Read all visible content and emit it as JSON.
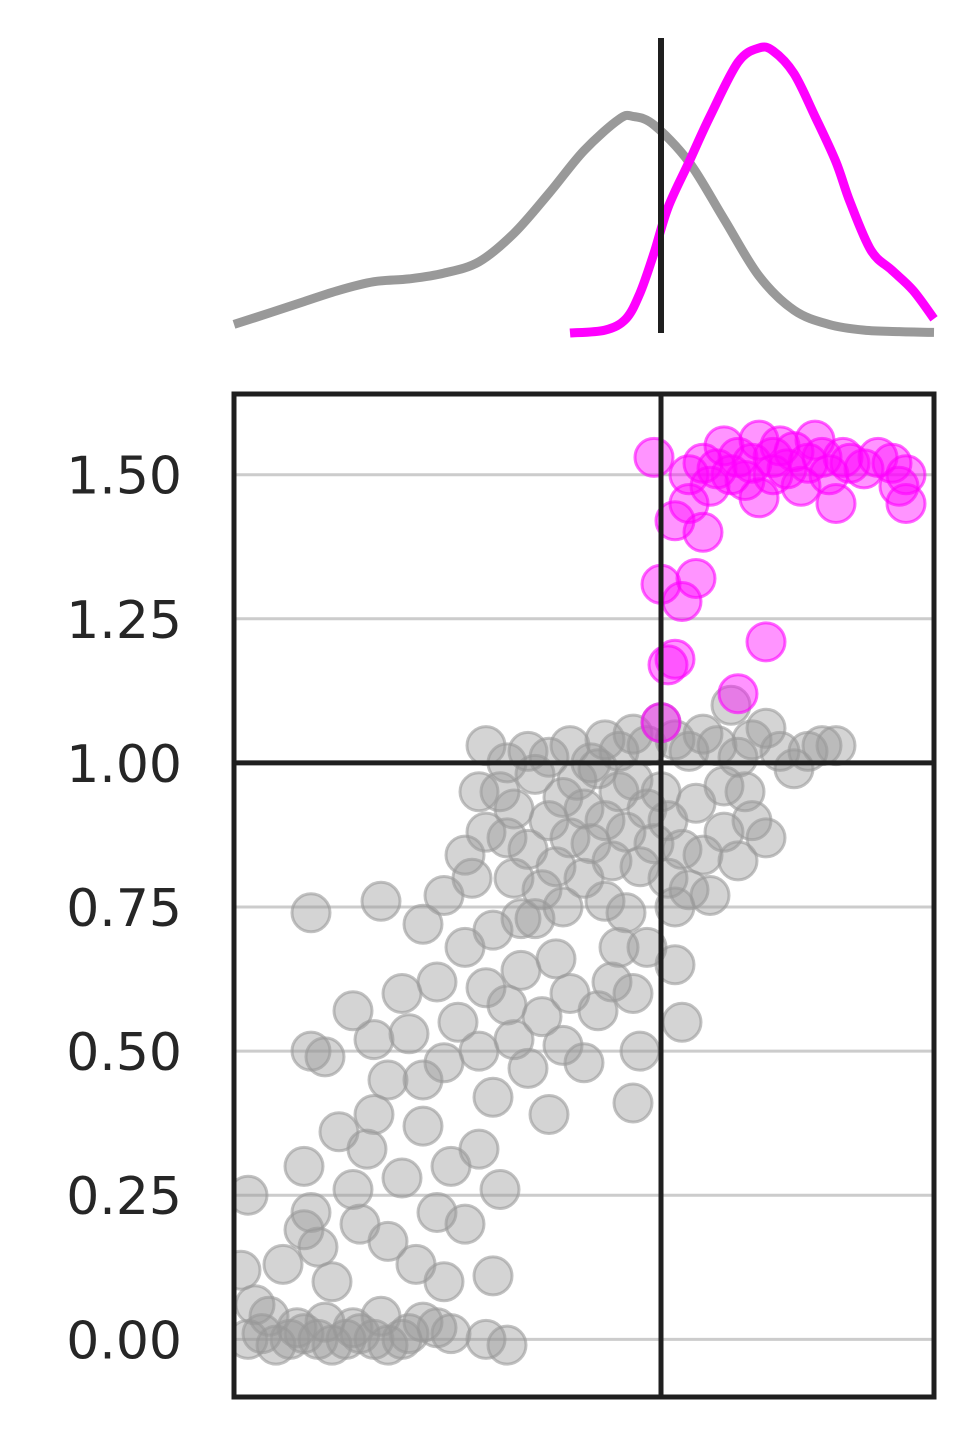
{
  "chart_data": [
    {
      "type": "line",
      "panel": "marginal-density",
      "title": "",
      "xlabel": "",
      "ylabel": "",
      "xlim": [
        0,
        1
      ],
      "ylim": [
        0,
        1
      ],
      "grid": false,
      "threshold_x": 0.61,
      "series": [
        {
          "color": "#999999",
          "x": [
            0.0,
            0.05,
            0.1,
            0.15,
            0.2,
            0.25,
            0.3,
            0.35,
            0.4,
            0.45,
            0.5,
            0.55,
            0.57,
            0.6,
            0.65,
            0.7,
            0.75,
            0.8,
            0.85,
            0.9,
            0.95,
            1.0
          ],
          "y": [
            0.03,
            0.07,
            0.11,
            0.15,
            0.18,
            0.19,
            0.21,
            0.25,
            0.35,
            0.49,
            0.64,
            0.75,
            0.76,
            0.73,
            0.6,
            0.4,
            0.2,
            0.08,
            0.03,
            0.01,
            0.005,
            0.002
          ]
        },
        {
          "color": "#ff00ff",
          "x": [
            0.48,
            0.53,
            0.56,
            0.58,
            0.6,
            0.62,
            0.65,
            0.68,
            0.72,
            0.75,
            0.77,
            0.8,
            0.83,
            0.86,
            0.88,
            0.91,
            0.94,
            0.97,
            1.0
          ],
          "y": [
            0.0,
            0.01,
            0.05,
            0.14,
            0.28,
            0.44,
            0.6,
            0.76,
            0.95,
            1.0,
            0.99,
            0.91,
            0.76,
            0.6,
            0.46,
            0.29,
            0.22,
            0.15,
            0.05
          ]
        }
      ]
    },
    {
      "type": "scatter",
      "panel": "main",
      "title": "",
      "xlabel": "",
      "ylabel": "",
      "xlim": [
        0,
        1
      ],
      "ylim": [
        -0.1,
        1.64
      ],
      "y_ticks": [
        "0.00",
        "0.25",
        "0.50",
        "0.75",
        "1.00",
        "1.25",
        "1.50"
      ],
      "grid": "horizontal",
      "threshold_x": 0.61,
      "threshold_y": 1.0,
      "series": [
        {
          "color": "#999999",
          "points": [
            [
              0.02,
              0.0
            ],
            [
              0.04,
              0.01
            ],
            [
              0.06,
              -0.01
            ],
            [
              0.08,
              0.0
            ],
            [
              0.1,
              0.01
            ],
            [
              0.12,
              0.0
            ],
            [
              0.14,
              -0.01
            ],
            [
              0.16,
              0.0
            ],
            [
              0.18,
              0.01
            ],
            [
              0.2,
              0.0
            ],
            [
              0.22,
              -0.01
            ],
            [
              0.24,
              0.0
            ],
            [
              0.03,
              0.06
            ],
            [
              0.05,
              0.04
            ],
            [
              0.09,
              0.02
            ],
            [
              0.13,
              0.03
            ],
            [
              0.17,
              0.02
            ],
            [
              0.21,
              0.04
            ],
            [
              0.25,
              0.01
            ],
            [
              0.27,
              0.03
            ],
            [
              0.29,
              0.02
            ],
            [
              0.31,
              0.01
            ],
            [
              0.36,
              0.0
            ],
            [
              0.39,
              -0.01
            ],
            [
              0.01,
              0.12
            ],
            [
              0.02,
              0.25
            ],
            [
              0.07,
              0.13
            ],
            [
              0.1,
              0.19
            ],
            [
              0.12,
              0.16
            ],
            [
              0.1,
              0.3
            ],
            [
              0.11,
              0.22
            ],
            [
              0.15,
              0.36
            ],
            [
              0.14,
              0.1
            ],
            [
              0.17,
              0.26
            ],
            [
              0.18,
              0.2
            ],
            [
              0.19,
              0.33
            ],
            [
              0.2,
              0.39
            ],
            [
              0.22,
              0.17
            ],
            [
              0.24,
              0.28
            ],
            [
              0.26,
              0.13
            ],
            [
              0.27,
              0.37
            ],
            [
              0.29,
              0.22
            ],
            [
              0.3,
              0.1
            ],
            [
              0.31,
              0.3
            ],
            [
              0.33,
              0.2
            ],
            [
              0.35,
              0.33
            ],
            [
              0.37,
              0.11
            ],
            [
              0.38,
              0.26
            ],
            [
              0.11,
              0.5
            ],
            [
              0.13,
              0.49
            ],
            [
              0.17,
              0.57
            ],
            [
              0.2,
              0.52
            ],
            [
              0.22,
              0.45
            ],
            [
              0.24,
              0.6
            ],
            [
              0.25,
              0.53
            ],
            [
              0.27,
              0.45
            ],
            [
              0.29,
              0.62
            ],
            [
              0.3,
              0.48
            ],
            [
              0.32,
              0.55
            ],
            [
              0.33,
              0.68
            ],
            [
              0.35,
              0.5
            ],
            [
              0.36,
              0.61
            ],
            [
              0.37,
              0.42
            ],
            [
              0.39,
              0.58
            ],
            [
              0.4,
              0.52
            ],
            [
              0.41,
              0.64
            ],
            [
              0.42,
              0.47
            ],
            [
              0.43,
              0.73
            ],
            [
              0.44,
              0.56
            ],
            [
              0.45,
              0.39
            ],
            [
              0.46,
              0.66
            ],
            [
              0.47,
              0.51
            ],
            [
              0.48,
              0.6
            ],
            [
              0.5,
              0.48
            ],
            [
              0.52,
              0.57
            ],
            [
              0.54,
              0.62
            ],
            [
              0.55,
              0.68
            ],
            [
              0.57,
              0.6
            ],
            [
              0.58,
              0.5
            ],
            [
              0.57,
              0.41
            ],
            [
              0.11,
              0.74
            ],
            [
              0.21,
              0.76
            ],
            [
              0.27,
              0.72
            ],
            [
              0.3,
              0.77
            ],
            [
              0.33,
              0.84
            ],
            [
              0.34,
              0.8
            ],
            [
              0.35,
              0.95
            ],
            [
              0.36,
              0.88
            ],
            [
              0.37,
              0.71
            ],
            [
              0.39,
              0.87
            ],
            [
              0.38,
              0.95
            ],
            [
              0.4,
              0.8
            ],
            [
              0.4,
              0.92
            ],
            [
              0.41,
              0.73
            ],
            [
              0.42,
              0.85
            ],
            [
              0.43,
              0.98
            ],
            [
              0.44,
              0.78
            ],
            [
              0.45,
              0.9
            ],
            [
              0.46,
              0.82
            ],
            [
              0.47,
              0.94
            ],
            [
              0.47,
              0.75
            ],
            [
              0.48,
              0.87
            ],
            [
              0.49,
              0.97
            ],
            [
              0.5,
              0.8
            ],
            [
              0.5,
              0.92
            ],
            [
              0.51,
              0.86
            ],
            [
              0.52,
              0.99
            ],
            [
              0.53,
              0.76
            ],
            [
              0.53,
              0.9
            ],
            [
              0.54,
              0.83
            ],
            [
              0.55,
              0.95
            ],
            [
              0.56,
              0.88
            ],
            [
              0.56,
              0.74
            ],
            [
              0.57,
              0.97
            ],
            [
              0.58,
              0.82
            ],
            [
              0.59,
              0.92
            ],
            [
              0.59,
              0.68
            ],
            [
              0.6,
              0.86
            ],
            [
              0.61,
              0.95
            ],
            [
              0.62,
              0.8
            ],
            [
              0.62,
              0.9
            ],
            [
              0.63,
              0.75
            ],
            [
              0.63,
              0.65
            ],
            [
              0.64,
              0.55
            ],
            [
              0.64,
              0.85
            ],
            [
              0.65,
              0.78
            ],
            [
              0.66,
              0.93
            ],
            [
              0.67,
              0.84
            ],
            [
              0.68,
              0.77
            ],
            [
              0.7,
              0.88
            ],
            [
              0.72,
              0.83
            ],
            [
              0.74,
              0.9
            ],
            [
              0.76,
              0.87
            ],
            [
              0.36,
              1.03
            ],
            [
              0.39,
              1.0
            ],
            [
              0.42,
              1.02
            ],
            [
              0.45,
              1.01
            ],
            [
              0.48,
              1.03
            ],
            [
              0.51,
              1.0
            ],
            [
              0.53,
              1.04
            ],
            [
              0.55,
              1.02
            ],
            [
              0.57,
              1.05
            ],
            [
              0.59,
              1.03
            ],
            [
              0.61,
              1.07
            ],
            [
              0.63,
              1.04
            ],
            [
              0.65,
              1.02
            ],
            [
              0.67,
              1.05
            ],
            [
              0.69,
              1.03
            ],
            [
              0.71,
              1.1
            ],
            [
              0.72,
              1.01
            ],
            [
              0.74,
              1.04
            ],
            [
              0.76,
              1.06
            ],
            [
              0.78,
              1.02
            ],
            [
              0.8,
              0.99
            ],
            [
              0.82,
              1.02
            ],
            [
              0.84,
              1.03
            ],
            [
              0.86,
              1.03
            ],
            [
              0.7,
              0.96
            ],
            [
              0.73,
              0.95
            ]
          ]
        },
        {
          "color": "#ff00ff",
          "points": [
            [
              0.6,
              1.53
            ],
            [
              0.61,
              1.07
            ],
            [
              0.61,
              1.31
            ],
            [
              0.62,
              1.17
            ],
            [
              0.63,
              1.18
            ],
            [
              0.63,
              1.42
            ],
            [
              0.64,
              1.28
            ],
            [
              0.65,
              1.45
            ],
            [
              0.65,
              1.5
            ],
            [
              0.66,
              1.32
            ],
            [
              0.67,
              1.4
            ],
            [
              0.67,
              1.52
            ],
            [
              0.68,
              1.48
            ],
            [
              0.69,
              1.51
            ],
            [
              0.7,
              1.55
            ],
            [
              0.71,
              1.5
            ],
            [
              0.72,
              1.53
            ],
            [
              0.72,
              1.12
            ],
            [
              0.73,
              1.49
            ],
            [
              0.74,
              1.52
            ],
            [
              0.75,
              1.56
            ],
            [
              0.75,
              1.46
            ],
            [
              0.76,
              1.21
            ],
            [
              0.77,
              1.53
            ],
            [
              0.77,
              1.5
            ],
            [
              0.78,
              1.55
            ],
            [
              0.79,
              1.51
            ],
            [
              0.8,
              1.54
            ],
            [
              0.81,
              1.48
            ],
            [
              0.82,
              1.52
            ],
            [
              0.83,
              1.56
            ],
            [
              0.84,
              1.53
            ],
            [
              0.85,
              1.5
            ],
            [
              0.86,
              1.45
            ],
            [
              0.87,
              1.53
            ],
            [
              0.88,
              1.52
            ],
            [
              0.9,
              1.51
            ],
            [
              0.92,
              1.53
            ],
            [
              0.94,
              1.52
            ],
            [
              0.95,
              1.48
            ],
            [
              0.96,
              1.45
            ],
            [
              0.96,
              1.5
            ]
          ]
        }
      ]
    }
  ]
}
